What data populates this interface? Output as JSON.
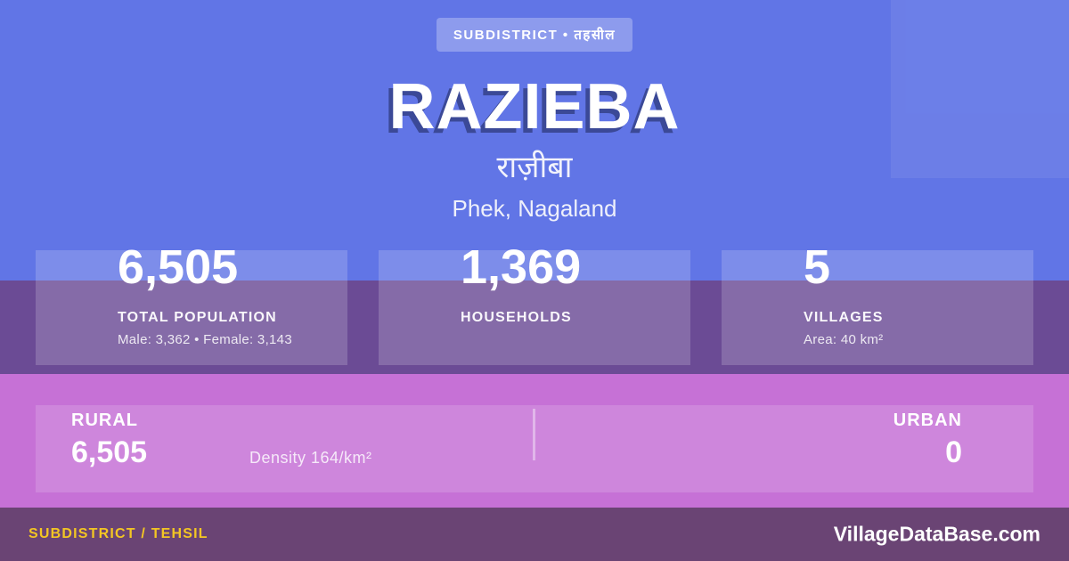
{
  "badge": {
    "label": "SUBDISTRICT • तहसील"
  },
  "hero": {
    "title": "RAZIEBA",
    "title_local": "राज़ीबा",
    "location": "Phek, Nagaland"
  },
  "stats": [
    {
      "value": "6,505",
      "label": "TOTAL POPULATION",
      "sub": "Male: 3,362 • Female: 3,143"
    },
    {
      "value": "1,369",
      "label": "HOUSEHOLDS",
      "sub": ""
    },
    {
      "value": "5",
      "label": "VILLAGES",
      "sub": "Area: 40 km²"
    }
  ],
  "rural_urban": {
    "rural_label": "RURAL",
    "rural_value": "6,505",
    "density": "Density 164/km²",
    "urban_label": "URBAN",
    "urban_value": "0"
  },
  "footer": {
    "type_label": "SUBDISTRICT / TEHSIL",
    "site": "VillageDataBase.com"
  },
  "colors": {
    "hero_blue": "#6175e6",
    "purple_band": "#6b4b95",
    "pink_band": "#c671d6",
    "footer_purple": "#6a4474",
    "accent_yellow": "#f3c623",
    "title_shadow": "#40466e",
    "text_white": "#ffffff"
  }
}
